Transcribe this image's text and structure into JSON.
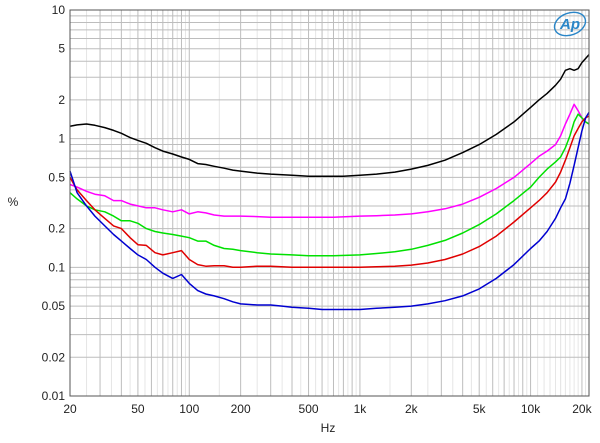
{
  "chart_data": {
    "type": "line",
    "xlabel": "Hz",
    "ylabel": "%",
    "x_scale": "log",
    "y_scale": "log",
    "xlim": [
      20,
      22000
    ],
    "ylim": [
      0.01,
      10
    ],
    "grid": true,
    "x_ticks": [
      {
        "v": 20,
        "label": "20"
      },
      {
        "v": 50,
        "label": "50"
      },
      {
        "v": 100,
        "label": "100"
      },
      {
        "v": 200,
        "label": "200"
      },
      {
        "v": 500,
        "label": "500"
      },
      {
        "v": 1000,
        "label": "1k"
      },
      {
        "v": 2000,
        "label": "2k"
      },
      {
        "v": 5000,
        "label": "5k"
      },
      {
        "v": 10000,
        "label": "10k"
      },
      {
        "v": 20000,
        "label": "20k"
      }
    ],
    "y_ticks": [
      {
        "v": 10,
        "label": "10"
      },
      {
        "v": 5,
        "label": "5"
      },
      {
        "v": 2,
        "label": "2"
      },
      {
        "v": 1,
        "label": "1"
      },
      {
        "v": 0.5,
        "label": "0.5"
      },
      {
        "v": 0.2,
        "label": "0.2"
      },
      {
        "v": 0.1,
        "label": "0.1"
      },
      {
        "v": 0.05,
        "label": "0.05"
      },
      {
        "v": 0.02,
        "label": "0.02"
      },
      {
        "v": 0.01,
        "label": "0.01"
      }
    ],
    "series": [
      {
        "color": "#000000",
        "points": [
          [
            20,
            1.25
          ],
          [
            22,
            1.28
          ],
          [
            25,
            1.3
          ],
          [
            28,
            1.27
          ],
          [
            32,
            1.22
          ],
          [
            36,
            1.16
          ],
          [
            40,
            1.1
          ],
          [
            45,
            1.02
          ],
          [
            50,
            0.97
          ],
          [
            56,
            0.92
          ],
          [
            63,
            0.85
          ],
          [
            70,
            0.8
          ],
          [
            80,
            0.76
          ],
          [
            90,
            0.72
          ],
          [
            100,
            0.69
          ],
          [
            112,
            0.64
          ],
          [
            125,
            0.63
          ],
          [
            140,
            0.61
          ],
          [
            160,
            0.59
          ],
          [
            180,
            0.57
          ],
          [
            200,
            0.56
          ],
          [
            250,
            0.54
          ],
          [
            300,
            0.53
          ],
          [
            400,
            0.52
          ],
          [
            500,
            0.51
          ],
          [
            600,
            0.51
          ],
          [
            700,
            0.51
          ],
          [
            800,
            0.51
          ],
          [
            1000,
            0.52
          ],
          [
            1250,
            0.53
          ],
          [
            1600,
            0.55
          ],
          [
            2000,
            0.58
          ],
          [
            2500,
            0.62
          ],
          [
            3150,
            0.68
          ],
          [
            4000,
            0.78
          ],
          [
            5000,
            0.9
          ],
          [
            6300,
            1.08
          ],
          [
            8000,
            1.35
          ],
          [
            10000,
            1.75
          ],
          [
            11200,
            2.0
          ],
          [
            12500,
            2.25
          ],
          [
            14000,
            2.6
          ],
          [
            15000,
            2.9
          ],
          [
            16000,
            3.4
          ],
          [
            17000,
            3.5
          ],
          [
            18000,
            3.4
          ],
          [
            19000,
            3.5
          ],
          [
            20000,
            3.9
          ],
          [
            21000,
            4.2
          ],
          [
            22000,
            4.5
          ]
        ]
      },
      {
        "color": "#ff00ff",
        "points": [
          [
            20,
            0.44
          ],
          [
            22,
            0.42
          ],
          [
            25,
            0.39
          ],
          [
            28,
            0.37
          ],
          [
            32,
            0.36
          ],
          [
            36,
            0.33
          ],
          [
            40,
            0.33
          ],
          [
            45,
            0.31
          ],
          [
            50,
            0.3
          ],
          [
            56,
            0.29
          ],
          [
            63,
            0.29
          ],
          [
            70,
            0.28
          ],
          [
            80,
            0.27
          ],
          [
            90,
            0.28
          ],
          [
            100,
            0.26
          ],
          [
            112,
            0.27
          ],
          [
            125,
            0.265
          ],
          [
            140,
            0.255
          ],
          [
            160,
            0.25
          ],
          [
            180,
            0.25
          ],
          [
            200,
            0.25
          ],
          [
            250,
            0.248
          ],
          [
            300,
            0.245
          ],
          [
            400,
            0.245
          ],
          [
            500,
            0.245
          ],
          [
            700,
            0.245
          ],
          [
            1000,
            0.25
          ],
          [
            1250,
            0.252
          ],
          [
            1600,
            0.255
          ],
          [
            2000,
            0.26
          ],
          [
            2500,
            0.27
          ],
          [
            3150,
            0.285
          ],
          [
            4000,
            0.31
          ],
          [
            5000,
            0.35
          ],
          [
            6300,
            0.41
          ],
          [
            8000,
            0.5
          ],
          [
            10000,
            0.64
          ],
          [
            11200,
            0.73
          ],
          [
            12500,
            0.8
          ],
          [
            14000,
            0.9
          ],
          [
            15000,
            1.05
          ],
          [
            16000,
            1.3
          ],
          [
            17000,
            1.55
          ],
          [
            18000,
            1.85
          ],
          [
            19000,
            1.65
          ],
          [
            20000,
            1.45
          ],
          [
            21000,
            1.35
          ],
          [
            22000,
            1.3
          ]
        ]
      },
      {
        "color": "#00e000",
        "points": [
          [
            20,
            0.38
          ],
          [
            22,
            0.34
          ],
          [
            25,
            0.3
          ],
          [
            28,
            0.28
          ],
          [
            32,
            0.27
          ],
          [
            36,
            0.25
          ],
          [
            40,
            0.23
          ],
          [
            45,
            0.23
          ],
          [
            50,
            0.22
          ],
          [
            56,
            0.2
          ],
          [
            63,
            0.19
          ],
          [
            70,
            0.185
          ],
          [
            80,
            0.18
          ],
          [
            90,
            0.175
          ],
          [
            100,
            0.17
          ],
          [
            112,
            0.16
          ],
          [
            125,
            0.16
          ],
          [
            140,
            0.148
          ],
          [
            160,
            0.14
          ],
          [
            180,
            0.138
          ],
          [
            200,
            0.135
          ],
          [
            250,
            0.13
          ],
          [
            300,
            0.127
          ],
          [
            400,
            0.125
          ],
          [
            500,
            0.123
          ],
          [
            700,
            0.123
          ],
          [
            1000,
            0.125
          ],
          [
            1250,
            0.128
          ],
          [
            1600,
            0.132
          ],
          [
            2000,
            0.138
          ],
          [
            2500,
            0.148
          ],
          [
            3150,
            0.162
          ],
          [
            4000,
            0.185
          ],
          [
            5000,
            0.215
          ],
          [
            6300,
            0.26
          ],
          [
            8000,
            0.33
          ],
          [
            10000,
            0.42
          ],
          [
            11200,
            0.5
          ],
          [
            12500,
            0.58
          ],
          [
            14000,
            0.66
          ],
          [
            15000,
            0.72
          ],
          [
            16000,
            0.85
          ],
          [
            17000,
            1.05
          ],
          [
            18000,
            1.35
          ],
          [
            19000,
            1.55
          ],
          [
            20000,
            1.45
          ],
          [
            21000,
            1.35
          ],
          [
            22000,
            1.3
          ]
        ]
      },
      {
        "color": "#e00000",
        "points": [
          [
            20,
            0.5
          ],
          [
            22,
            0.4
          ],
          [
            25,
            0.33
          ],
          [
            28,
            0.28
          ],
          [
            32,
            0.24
          ],
          [
            36,
            0.21
          ],
          [
            40,
            0.2
          ],
          [
            45,
            0.17
          ],
          [
            50,
            0.15
          ],
          [
            56,
            0.148
          ],
          [
            63,
            0.13
          ],
          [
            70,
            0.125
          ],
          [
            80,
            0.13
          ],
          [
            90,
            0.135
          ],
          [
            100,
            0.115
          ],
          [
            112,
            0.105
          ],
          [
            125,
            0.102
          ],
          [
            140,
            0.103
          ],
          [
            160,
            0.103
          ],
          [
            180,
            0.1
          ],
          [
            200,
            0.1
          ],
          [
            250,
            0.102
          ],
          [
            300,
            0.102
          ],
          [
            400,
            0.1
          ],
          [
            500,
            0.1
          ],
          [
            700,
            0.1
          ],
          [
            1000,
            0.1
          ],
          [
            1250,
            0.101
          ],
          [
            1600,
            0.102
          ],
          [
            2000,
            0.104
          ],
          [
            2500,
            0.108
          ],
          [
            3150,
            0.115
          ],
          [
            4000,
            0.127
          ],
          [
            5000,
            0.145
          ],
          [
            6300,
            0.175
          ],
          [
            8000,
            0.225
          ],
          [
            10000,
            0.29
          ],
          [
            11200,
            0.33
          ],
          [
            12500,
            0.38
          ],
          [
            14000,
            0.46
          ],
          [
            15000,
            0.55
          ],
          [
            16000,
            0.68
          ],
          [
            17000,
            0.85
          ],
          [
            18000,
            1.05
          ],
          [
            19000,
            1.2
          ],
          [
            20000,
            1.35
          ],
          [
            21000,
            1.45
          ],
          [
            22000,
            1.5
          ]
        ]
      },
      {
        "color": "#0000d0",
        "points": [
          [
            20,
            0.56
          ],
          [
            22,
            0.38
          ],
          [
            25,
            0.3
          ],
          [
            28,
            0.25
          ],
          [
            32,
            0.21
          ],
          [
            36,
            0.18
          ],
          [
            40,
            0.16
          ],
          [
            45,
            0.14
          ],
          [
            50,
            0.125
          ],
          [
            56,
            0.115
          ],
          [
            63,
            0.1
          ],
          [
            70,
            0.09
          ],
          [
            80,
            0.082
          ],
          [
            90,
            0.088
          ],
          [
            100,
            0.075
          ],
          [
            112,
            0.066
          ],
          [
            125,
            0.062
          ],
          [
            140,
            0.06
          ],
          [
            160,
            0.057
          ],
          [
            180,
            0.054
          ],
          [
            200,
            0.052
          ],
          [
            250,
            0.051
          ],
          [
            300,
            0.051
          ],
          [
            350,
            0.05
          ],
          [
            400,
            0.049
          ],
          [
            500,
            0.048
          ],
          [
            600,
            0.047
          ],
          [
            700,
            0.047
          ],
          [
            800,
            0.047
          ],
          [
            1000,
            0.047
          ],
          [
            1250,
            0.048
          ],
          [
            1600,
            0.049
          ],
          [
            2000,
            0.05
          ],
          [
            2500,
            0.052
          ],
          [
            3150,
            0.055
          ],
          [
            4000,
            0.06
          ],
          [
            5000,
            0.068
          ],
          [
            6300,
            0.082
          ],
          [
            8000,
            0.105
          ],
          [
            10000,
            0.14
          ],
          [
            11200,
            0.16
          ],
          [
            12500,
            0.19
          ],
          [
            14000,
            0.24
          ],
          [
            15000,
            0.29
          ],
          [
            16000,
            0.34
          ],
          [
            17000,
            0.45
          ],
          [
            18000,
            0.62
          ],
          [
            19000,
            0.85
          ],
          [
            20000,
            1.15
          ],
          [
            21000,
            1.45
          ],
          [
            22000,
            1.6
          ]
        ]
      }
    ]
  },
  "logo": {
    "text": "Ap",
    "color": "#2a86c8"
  }
}
